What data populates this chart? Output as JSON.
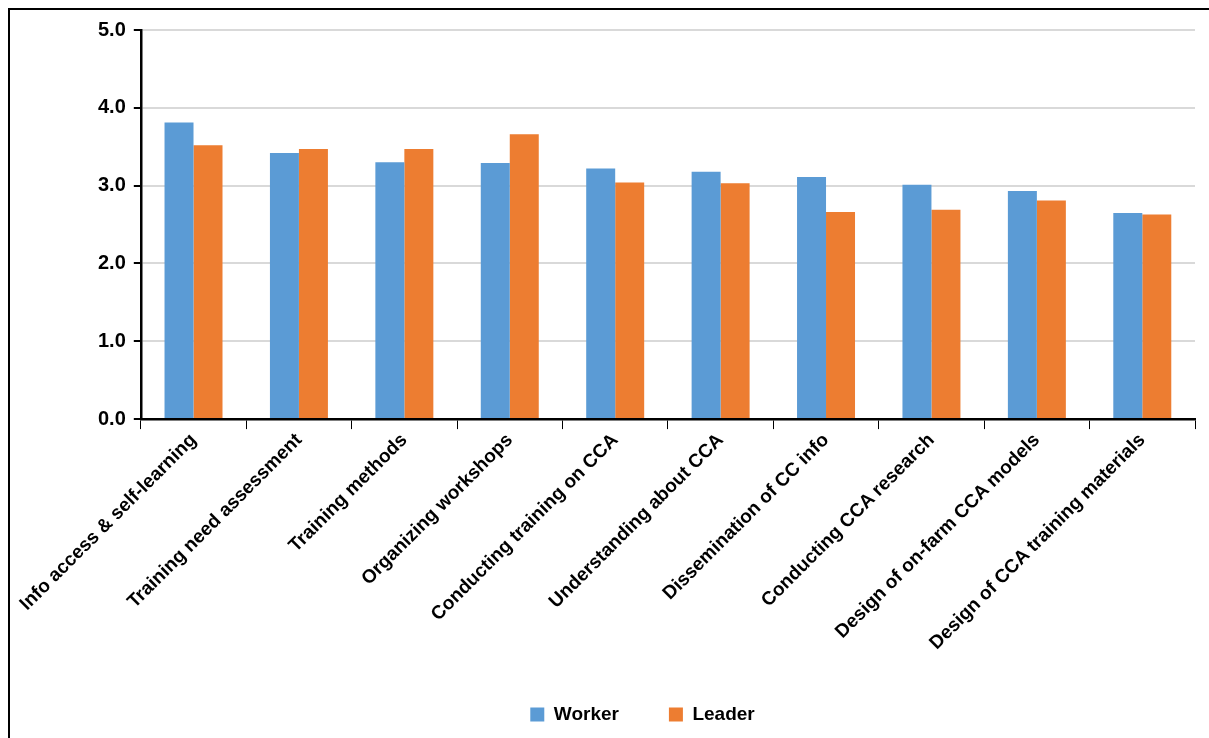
{
  "chart_data": {
    "type": "bar",
    "categories": [
      "Info access & self-learning",
      "Training need assessment",
      "Training methods",
      "Organizing workshops",
      "Conducting training on CCA",
      "Understanding about CCA",
      "Dissemination of CC info",
      "Conducting CCA research",
      "Design of on-farm CCA models",
      "Design of CCA training materials"
    ],
    "series": [
      {
        "name": "Worker",
        "color": "#5b9bd5",
        "values": [
          3.81,
          3.42,
          3.3,
          3.29,
          3.22,
          3.18,
          3.11,
          3.01,
          2.93,
          2.65
        ]
      },
      {
        "name": "Leader",
        "color": "#ed7d31",
        "values": [
          3.52,
          3.47,
          3.47,
          3.66,
          3.04,
          3.03,
          2.66,
          2.69,
          2.81,
          2.63
        ]
      }
    ],
    "ylim": [
      0,
      5
    ],
    "yticks": [
      {
        "value": 0,
        "label": "0.0"
      },
      {
        "value": 1,
        "label": "1.0"
      },
      {
        "value": 2,
        "label": "2.0"
      },
      {
        "value": 3,
        "label": "3.0"
      },
      {
        "value": 4,
        "label": "4.0"
      },
      {
        "value": 5,
        "label": "5.0"
      }
    ],
    "grid": "y",
    "legend": "bottom"
  }
}
